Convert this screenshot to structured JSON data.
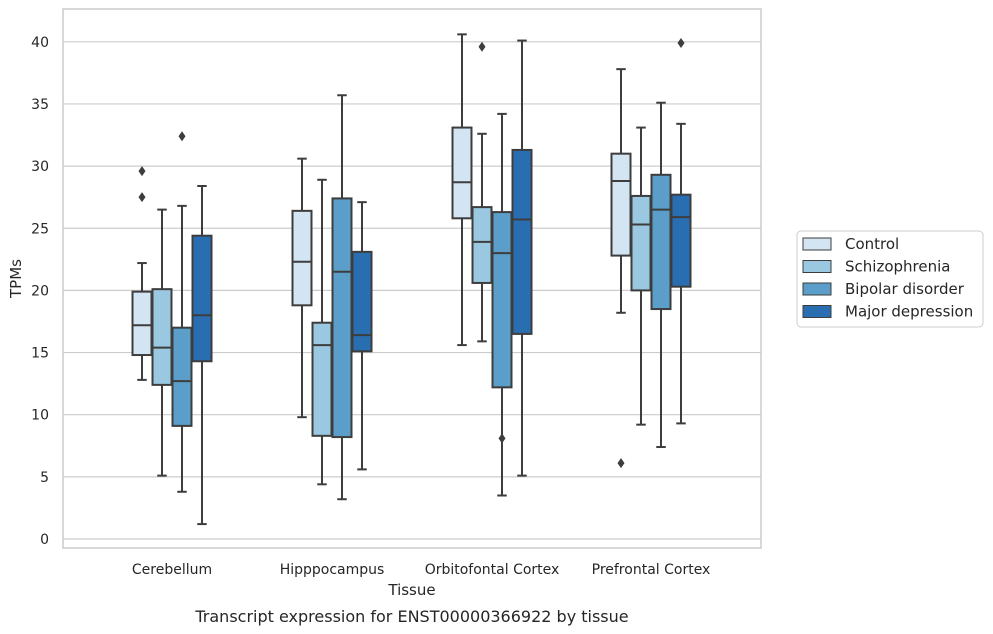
{
  "chart_data": {
    "type": "box",
    "title": "",
    "caption": "Transcript expression for ENST00000366922 by tissue",
    "xlabel": "Tissue",
    "ylabel": "TPMs",
    "ylim": [
      -0.7,
      42.5
    ],
    "yticks": [
      0,
      5,
      10,
      15,
      20,
      25,
      30,
      35,
      40
    ],
    "grid": "horizontal",
    "legend_position": "right",
    "categories": [
      "Cerebellum",
      "Hipppocampus",
      "Orbitofontal Cortex",
      "Prefrontal Cortex"
    ],
    "series": [
      {
        "name": "Control",
        "color": "#d3e4f3",
        "boxes": [
          {
            "whisker_low": 12.8,
            "q1": 14.8,
            "median": 17.2,
            "q3": 19.9,
            "whisker_high": 22.2,
            "outliers": [
              27.5,
              29.6
            ]
          },
          {
            "whisker_low": 9.8,
            "q1": 18.8,
            "median": 22.3,
            "q3": 26.4,
            "whisker_high": 30.6,
            "outliers": []
          },
          {
            "whisker_low": 15.6,
            "q1": 25.8,
            "median": 28.7,
            "q3": 33.1,
            "whisker_high": 40.6,
            "outliers": []
          },
          {
            "whisker_low": 18.2,
            "q1": 22.8,
            "median": 28.8,
            "q3": 31.0,
            "whisker_high": 37.8,
            "outliers": [
              6.1
            ]
          }
        ]
      },
      {
        "name": "Schizophrenia",
        "color": "#9ac8e0",
        "boxes": [
          {
            "whisker_low": 5.1,
            "q1": 12.4,
            "median": 15.4,
            "q3": 20.1,
            "whisker_high": 26.5,
            "outliers": []
          },
          {
            "whisker_low": 4.4,
            "q1": 8.3,
            "median": 15.6,
            "q3": 17.4,
            "whisker_high": 28.9,
            "outliers": []
          },
          {
            "whisker_low": 15.9,
            "q1": 20.6,
            "median": 23.9,
            "q3": 26.7,
            "whisker_high": 32.6,
            "outliers": [
              39.6
            ]
          },
          {
            "whisker_low": 9.2,
            "q1": 20.0,
            "median": 25.3,
            "q3": 27.6,
            "whisker_high": 33.1,
            "outliers": []
          }
        ]
      },
      {
        "name": "Bipolar disorder",
        "color": "#5a9ec9",
        "boxes": [
          {
            "whisker_low": 3.8,
            "q1": 9.1,
            "median": 12.7,
            "q3": 17.0,
            "whisker_high": 26.8,
            "outliers": [
              32.4
            ]
          },
          {
            "whisker_low": 3.2,
            "q1": 8.2,
            "median": 21.5,
            "q3": 27.4,
            "whisker_high": 35.7,
            "outliers": []
          },
          {
            "whisker_low": 3.5,
            "q1": 12.2,
            "median": 23.0,
            "q3": 26.3,
            "whisker_high": 34.2,
            "outliers": [
              8.1
            ]
          },
          {
            "whisker_low": 7.4,
            "q1": 18.5,
            "median": 26.5,
            "q3": 29.3,
            "whisker_high": 35.1,
            "outliers": []
          }
        ]
      },
      {
        "name": "Major depression",
        "color": "#2a6eb2",
        "boxes": [
          {
            "whisker_low": 1.2,
            "q1": 14.3,
            "median": 18.0,
            "q3": 24.4,
            "whisker_high": 28.4,
            "outliers": []
          },
          {
            "whisker_low": 5.6,
            "q1": 15.1,
            "median": 16.4,
            "q3": 23.1,
            "whisker_high": 27.1,
            "outliers": []
          },
          {
            "whisker_low": 5.1,
            "q1": 16.5,
            "median": 25.7,
            "q3": 31.3,
            "whisker_high": 40.1,
            "outliers": []
          },
          {
            "whisker_low": 9.3,
            "q1": 20.3,
            "median": 25.9,
            "q3": 27.7,
            "whisker_high": 33.4,
            "outliers": [
              39.9
            ]
          }
        ]
      }
    ]
  }
}
